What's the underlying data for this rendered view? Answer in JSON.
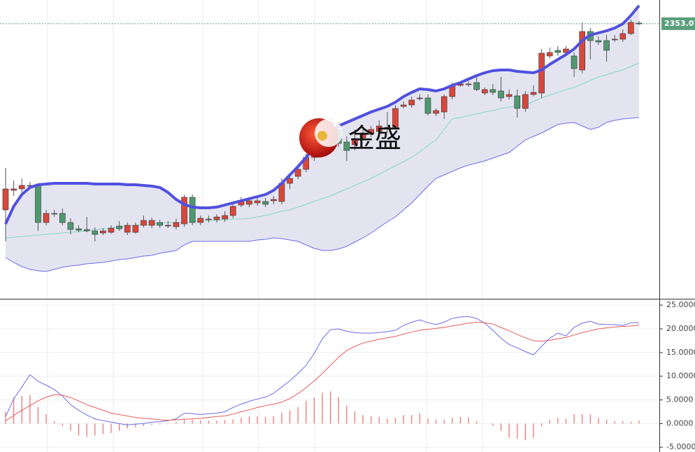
{
  "chart_data": [
    {
      "type": "candlestick",
      "ylim": [
        2157.5,
        2370
      ],
      "up_color": "#d9473a",
      "down_color": "#4e9a6f",
      "last_price": 2353.07,
      "last_price_color": "#5a9e7c",
      "watermark": "金盛",
      "open": [
        2220,
        2234,
        2235,
        2237.5,
        2237.5,
        2211,
        2217.5,
        2217.5,
        2211,
        2206.5,
        2206,
        2205,
        2203.5,
        2204,
        2208.5,
        2204,
        2204,
        2209,
        2209,
        2211,
        2209,
        2208,
        2210,
        2229,
        2211,
        2213.5,
        2213,
        2213.5,
        2216,
        2223.5,
        2224,
        2225,
        2226,
        2226.5,
        2226,
        2239,
        2244,
        2249,
        2257.5,
        2270,
        2278.5,
        2277.5,
        2268.5,
        2266.5,
        2271.5,
        2274,
        2276,
        2278.5,
        2279,
        2294,
        2295,
        2300,
        2300,
        2289,
        2290,
        2301,
        2309,
        2309.5,
        2311,
        2303.5,
        2306,
        2305,
        2301,
        2301.5,
        2292.5,
        2302.5,
        2303.5,
        2330,
        2334,
        2332.5,
        2330,
        2320,
        2347.5,
        2341,
        2341,
        2341.5,
        2342,
        2346,
        2353.5
      ],
      "high": [
        2250,
        2241,
        2242.5,
        2240,
        2239,
        2220,
        2220,
        2221,
        2214,
        2209,
        2215,
        2207.5,
        2207,
        2209,
        2212,
        2211,
        2211,
        2216,
        2214.5,
        2213,
        2212,
        2214,
        2231,
        2231,
        2216,
        2216,
        2217,
        2219,
        2225,
        2229,
        2228.5,
        2228.5,
        2228.5,
        2230,
        2242.5,
        2245,
        2251,
        2260,
        2272.5,
        2285,
        2285,
        2282.5,
        2272.5,
        2277.5,
        2277.5,
        2280,
        2284,
        2290,
        2295,
        2297.5,
        2301,
        2302.5,
        2302.5,
        2292.5,
        2302.5,
        2311,
        2312,
        2312,
        2315,
        2307.5,
        2310,
        2315,
        2306,
        2306,
        2305,
        2309,
        2335,
        2336,
        2337,
        2337,
        2332.5,
        2354,
        2350,
        2344,
        2345,
        2345,
        2349,
        2356,
        2355
      ],
      "low": [
        2197.5,
        2230,
        2232.5,
        2235,
        2205,
        2209,
        2215,
        2209,
        2202.5,
        2204,
        2204,
        2197.5,
        2202,
        2203,
        2205,
        2202,
        2203,
        2207.5,
        2207,
        2207,
        2207,
        2206,
        2208,
        2209,
        2209,
        2211,
        2211,
        2211.5,
        2214,
        2222,
        2222,
        2223,
        2222,
        2224,
        2224,
        2235,
        2242,
        2247,
        2255,
        2267.5,
        2275,
        2265,
        2255,
        2262.5,
        2270,
        2272,
        2274,
        2275,
        2277.5,
        2292.5,
        2293,
        2298,
        2287.5,
        2287,
        2285,
        2299,
        2308,
        2308,
        2305,
        2302,
        2302,
        2297.5,
        2299,
        2286,
        2290,
        2301,
        2300,
        2328,
        2330,
        2331,
        2315,
        2317.5,
        2327.5,
        2338,
        2326,
        2340,
        2340,
        2345,
        2352
      ],
      "close": [
        2235,
        2235,
        2237.5,
        2237.5,
        2211,
        2217.5,
        2217,
        2211,
        2206,
        2205.5,
        2205,
        2202.5,
        2205,
        2207,
        2206.5,
        2209,
        2209,
        2212.5,
        2212.5,
        2209,
        2209,
        2211,
        2229,
        2211,
        2214,
        2213.5,
        2215,
        2216,
        2222.5,
        2226.5,
        2226.5,
        2226.5,
        2224,
        2227.5,
        2239,
        2242.5,
        2249,
        2257.5,
        2270,
        2281,
        2282.5,
        2267.5,
        2262.5,
        2271,
        2275,
        2277.5,
        2280,
        2279,
        2292.5,
        2295,
        2298.5,
        2300,
        2289,
        2291,
        2301,
        2309,
        2310,
        2310,
        2306,
        2306,
        2304,
        2300,
        2302.5,
        2292.5,
        2302.5,
        2304,
        2332,
        2332.5,
        2332.5,
        2335,
        2321,
        2347.5,
        2341,
        2340,
        2334,
        2342,
        2346,
        2354,
        2353.07
      ],
      "bands": {
        "fill": "#e4e4f1",
        "upper_color": "#5050e0",
        "middle_color": "#7fd9c2",
        "lower_color": "#6c6ce6",
        "upper": [
          2210,
          2222.5,
          2231,
          2236,
          2238,
          2238.5,
          2239,
          2239,
          2239,
          2239,
          2239,
          2238.5,
          2238.5,
          2238.5,
          2238.5,
          2238,
          2238,
          2237.5,
          2237,
          2236,
          2232.5,
          2227.5,
          2224,
          2222,
          2221.5,
          2221.5,
          2222,
          2223.5,
          2225,
          2226.5,
          2228,
          2229.5,
          2231,
          2234,
          2239,
          2245,
          2251,
          2257.5,
          2265,
          2271,
          2276,
          2280,
          2282.5,
          2285,
          2287.5,
          2290,
          2292,
          2294,
          2297,
          2301,
          2304,
          2306.5,
          2306,
          2305,
          2306.5,
          2309,
          2311,
          2313.5,
          2316,
          2318,
          2319.5,
          2320,
          2320,
          2319,
          2318.5,
          2318,
          2320,
          2324,
          2327.5,
          2331,
          2335,
          2341,
          2345,
          2346.5,
          2348,
          2350,
          2353,
          2359,
          2366
        ],
        "middle": [
          2200,
          2200.5,
          2201,
          2201.5,
          2202,
          2202.5,
          2203,
          2203.5,
          2204,
          2204.5,
          2205,
          2206,
          2206.5,
          2207,
          2208,
          2208.5,
          2209,
          2209.5,
          2210,
          2210.5,
          2211,
          2211,
          2211,
          2211.5,
          2212,
          2212.5,
          2212.5,
          2213,
          2213.5,
          2213.5,
          2214,
          2215,
          2216,
          2217.5,
          2219,
          2220,
          2222,
          2224,
          2226,
          2228,
          2230,
          2232.5,
          2235,
          2237.5,
          2240,
          2242.5,
          2245.5,
          2248.5,
          2251.5,
          2254.5,
          2257.5,
          2261.5,
          2266,
          2270,
          2277.5,
          2285,
          2286,
          2287.5,
          2288.5,
          2290,
          2291,
          2292.5,
          2293.5,
          2294,
          2295,
          2297.5,
          2300,
          2302,
          2304,
          2306,
          2307.5,
          2310,
          2312.5,
          2315,
          2316.5,
          2318.5,
          2320,
          2322.5,
          2325
        ],
        "lower": [
          2186,
          2182.5,
          2179.5,
          2177.5,
          2176.5,
          2176,
          2177.5,
          2179,
          2180,
          2180.5,
          2181.5,
          2182,
          2182.5,
          2183.5,
          2184.5,
          2185,
          2186,
          2187,
          2187.5,
          2189,
          2190,
          2191,
          2195,
          2197.5,
          2197.5,
          2197.5,
          2197.5,
          2197.5,
          2197.5,
          2197.5,
          2197.5,
          2198.5,
          2199,
          2200,
          2199.5,
          2198.5,
          2197.5,
          2195,
          2192.5,
          2191,
          2191,
          2192,
          2194,
          2197,
          2200,
          2203.5,
          2207.5,
          2211.5,
          2215,
          2220,
          2225,
          2231,
          2237,
          2242.5,
          2245,
          2247.5,
          2250,
          2252,
          2253.5,
          2255,
          2257,
          2259,
          2261,
          2265.5,
          2270,
          2272.5,
          2275,
          2278,
          2281,
          2282,
          2282.5,
          2280,
          2277.5,
          2279,
          2282.5,
          2284,
          2285,
          2285.5,
          2286
        ]
      }
    },
    {
      "type": "macd",
      "ylim": [
        -6,
        26.2
      ],
      "yticks": [
        {
          "value": 25,
          "label": "25.0000"
        },
        {
          "value": 20,
          "label": "20.0000"
        },
        {
          "value": 15,
          "label": "15.0000"
        },
        {
          "value": 10,
          "label": "10.0000"
        },
        {
          "value": 5,
          "label": "5.0000"
        },
        {
          "value": 0,
          "label": "0.0000"
        },
        {
          "value": -5,
          "label": "-5.0000"
        }
      ],
      "grid": true,
      "series": [
        {
          "color": "#6b6bea",
          "values": [
            1.5,
            5.2,
            7.7,
            10.3,
            8.9,
            8.1,
            7.2,
            5.8,
            4.0,
            2.8,
            1.8,
            1.0,
            0.6,
            0.3,
            0,
            -0.3,
            -0.1,
            0,
            0.3,
            0.4,
            0.6,
            1.0,
            2.2,
            2.1,
            1.9,
            2.1,
            2.2,
            2.5,
            3.4,
            4.1,
            4.7,
            5.2,
            5.6,
            6.4,
            7.7,
            9.0,
            10.6,
            12.3,
            14.8,
            17.9,
            19.8,
            20.0,
            19.5,
            19.2,
            19.1,
            19.1,
            19.2,
            19.4,
            19.7,
            20.7,
            21.4,
            21.9,
            21.3,
            20.9,
            21.4,
            22.2,
            22.5,
            22.6,
            22.2,
            21.2,
            19.7,
            18.0,
            16.7,
            16.0,
            15.2,
            14.5,
            16.3,
            18.0,
            19.1,
            18.5,
            20.3,
            21.2,
            21.6,
            21.0,
            20.9,
            20.9,
            20.7,
            21.3,
            21.3
          ]
        },
        {
          "color": "#e85a5a",
          "values": [
            0.6,
            1.7,
            2.8,
            3.8,
            4.8,
            5.6,
            6.1,
            6.0,
            5.5,
            4.8,
            4.0,
            3.4,
            2.8,
            2.2,
            1.9,
            1.6,
            1.3,
            1.1,
            1.0,
            0.8,
            0.7,
            0.8,
            0.9,
            1.0,
            1.1,
            1.3,
            1.5,
            1.6,
            2.0,
            2.5,
            2.9,
            3.4,
            3.8,
            4.1,
            4.5,
            5.3,
            6.3,
            7.6,
            9.0,
            10.6,
            12.3,
            14.0,
            15.4,
            16.3,
            17.0,
            17.4,
            17.8,
            18.1,
            18.4,
            18.9,
            19.3,
            19.7,
            19.9,
            20.1,
            20.3,
            20.6,
            20.9,
            21.2,
            21.4,
            21.3,
            21.0,
            20.3,
            19.6,
            18.8,
            18.1,
            17.5,
            17.4,
            17.6,
            17.9,
            18.2,
            18.7,
            19.2,
            19.6,
            20.0,
            20.2,
            20.4,
            20.5,
            20.6,
            20.8
          ]
        }
      ],
      "histogram": {
        "color": "#ee6a6a",
        "values": [
          2.5,
          5.5,
          5.8,
          6,
          3.5,
          2,
          0.5,
          -0.5,
          -1.5,
          -2.5,
          -2.8,
          -2.5,
          -2.2,
          -2,
          -1.5,
          -1,
          -0.8,
          -0.5,
          -0.3,
          -0.2,
          -0.1,
          0.3,
          0.8,
          0.8,
          0.7,
          0.6,
          0.6,
          0.7,
          0.9,
          1.2,
          1.5,
          1.5,
          1.4,
          1.6,
          2.3,
          2.8,
          3.5,
          4.8,
          5.5,
          6.5,
          6.8,
          5.6,
          3.8,
          2.6,
          1.8,
          1.6,
          1.4,
          1.0,
          1.2,
          1.8,
          1.8,
          2.2,
          1.1,
          0.8,
          0.8,
          1.2,
          1.4,
          1.3,
          0.5,
          0,
          -0.5,
          -1.5,
          -3,
          -3.2,
          -3.5,
          -3,
          -0.6,
          0.8,
          1.2,
          1.0,
          2.0,
          2.0,
          1.9,
          1.2,
          0.8,
          0.5,
          0.5,
          0.4,
          0.6
        ]
      }
    }
  ]
}
